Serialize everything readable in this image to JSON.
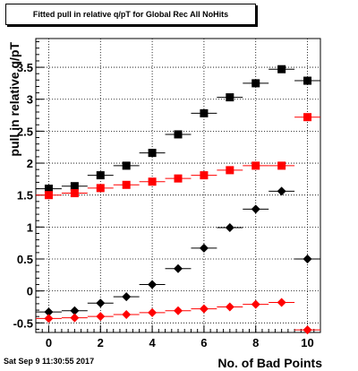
{
  "title": "Fitted pull in relative q/pT for Global Rec All NoHits",
  "footer": "Sat Sep  9 11:30:55 2017",
  "colors": {
    "black": "#000000",
    "red": "#ff0000",
    "grid": "#000000"
  },
  "chart_data": {
    "type": "scatter",
    "title": "Fitted pull in relative q/pT for Global Rec All NoHits",
    "xlabel": "No. of Bad Points",
    "ylabel": "pull in relative q/pT",
    "xlim": [
      -0.5,
      10.5
    ],
    "ylim": [
      -0.65,
      3.95
    ],
    "x_ticks": [
      0,
      2,
      4,
      6,
      8,
      10
    ],
    "y_ticks": [
      -0.5,
      0,
      0.5,
      1,
      1.5,
      2,
      2.5,
      3,
      3.5
    ],
    "x_tick_labels": [
      "0",
      "2",
      "4",
      "6",
      "8",
      "10"
    ],
    "y_tick_labels": [
      "-0.5",
      "0",
      "0.5",
      "1",
      "1.5",
      "2",
      "2.5",
      "3",
      "3.5"
    ],
    "grid": true,
    "series": [
      {
        "marker": "square",
        "color": "#000000",
        "x": [
          0,
          1,
          2,
          3,
          4,
          5,
          6,
          7,
          8,
          9,
          10
        ],
        "y": [
          1.6,
          1.64,
          1.81,
          1.96,
          2.16,
          2.45,
          2.78,
          3.03,
          3.25,
          3.47,
          3.29
        ]
      },
      {
        "marker": "square",
        "color": "#ff0000",
        "x": [
          0,
          1,
          2,
          3,
          4,
          5,
          6,
          7,
          8,
          9,
          10
        ],
        "y": [
          1.5,
          1.53,
          1.61,
          1.66,
          1.71,
          1.76,
          1.81,
          1.89,
          1.96,
          1.96,
          2.72
        ]
      },
      {
        "marker": "diamond",
        "color": "#000000",
        "x": [
          0,
          1,
          2,
          3,
          4,
          5,
          6,
          7,
          8,
          9,
          10
        ],
        "y": [
          -0.33,
          -0.31,
          -0.19,
          -0.09,
          0.1,
          0.35,
          0.67,
          0.99,
          1.28,
          1.56,
          0.5
        ]
      },
      {
        "marker": "diamond",
        "color": "#ff0000",
        "x": [
          0,
          1,
          2,
          3,
          4,
          5,
          6,
          7,
          8,
          9,
          10
        ],
        "y": [
          -0.43,
          -0.42,
          -0.4,
          -0.37,
          -0.34,
          -0.31,
          -0.28,
          -0.25,
          -0.21,
          -0.18,
          -0.61
        ]
      }
    ]
  }
}
